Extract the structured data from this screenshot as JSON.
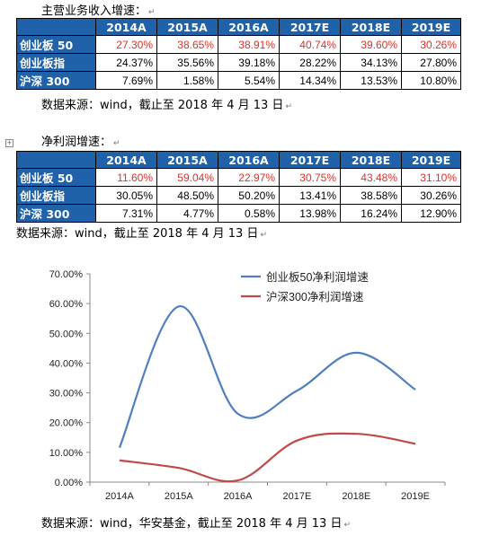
{
  "table1": {
    "caption": "主营业务收入增速：",
    "headers": [
      "",
      "2014A",
      "2015A",
      "2016A",
      "2017E",
      "2018E",
      "2019E"
    ],
    "rows": [
      {
        "label": "创业板 50",
        "values": [
          "27.30%",
          "38.65%",
          "38.91%",
          "40.74%",
          "39.60%",
          "30.26%"
        ],
        "highlight": true
      },
      {
        "label": "创业板指",
        "values": [
          "24.37%",
          "35.56%",
          "39.18%",
          "28.22%",
          "34.13%",
          "27.80%"
        ],
        "highlight": false
      },
      {
        "label": "沪深 300",
        "values": [
          "7.69%",
          "1.58%",
          "5.54%",
          "14.34%",
          "13.53%",
          "10.80%"
        ],
        "highlight": false
      }
    ],
    "source": "数据来源：wind，截止至 2018 年 4 月 13 日"
  },
  "table2": {
    "caption": "净利润增速：",
    "headers": [
      "",
      "2014A",
      "2015A",
      "2016A",
      "2017E",
      "2018E",
      "2019E"
    ],
    "rows": [
      {
        "label": "创业板 50",
        "values": [
          "11.60%",
          "59.04%",
          "22.97%",
          "30.75%",
          "43.48%",
          "31.10%"
        ],
        "highlight": true
      },
      {
        "label": "创业板指",
        "values": [
          "30.05%",
          "48.50%",
          "50.20%",
          "13.41%",
          "38.58%",
          "30.26%"
        ],
        "highlight": false
      },
      {
        "label": "沪深 300",
        "values": [
          "7.31%",
          "4.77%",
          "0.58%",
          "13.98%",
          "16.24%",
          "12.90%"
        ],
        "highlight": false
      }
    ],
    "source": "数据来源：wind，截止至 2018 年 4 月 13 日"
  },
  "colors": {
    "header_bg": "#1f62aa",
    "highlight_text": "#e0312a",
    "series_1": "#4f7fc0",
    "series_2": "#be4b48",
    "axis": "#888888",
    "grid": "#d9d9d9"
  },
  "chart_data": {
    "type": "line",
    "categories": [
      "2014A",
      "2015A",
      "2016A",
      "2017E",
      "2018E",
      "2019E"
    ],
    "series": [
      {
        "name": "创业板50净利润增速",
        "values": [
          11.6,
          59.04,
          22.97,
          30.75,
          43.48,
          31.1
        ]
      },
      {
        "name": "沪深300净利润增速",
        "values": [
          7.31,
          4.77,
          0.58,
          13.98,
          16.24,
          12.9
        ]
      }
    ],
    "ylim": [
      0,
      70
    ],
    "ytick_step": 10,
    "ytick_labels": [
      "0.00%",
      "10.00%",
      "20.00%",
      "30.00%",
      "40.00%",
      "50.00%",
      "60.00%",
      "70.00%"
    ],
    "legend_position": "top-right",
    "grid": false,
    "smooth": true
  },
  "chart_source": "数据来源：wind，华安基金，截止至 2018 年 4 月 13 日"
}
